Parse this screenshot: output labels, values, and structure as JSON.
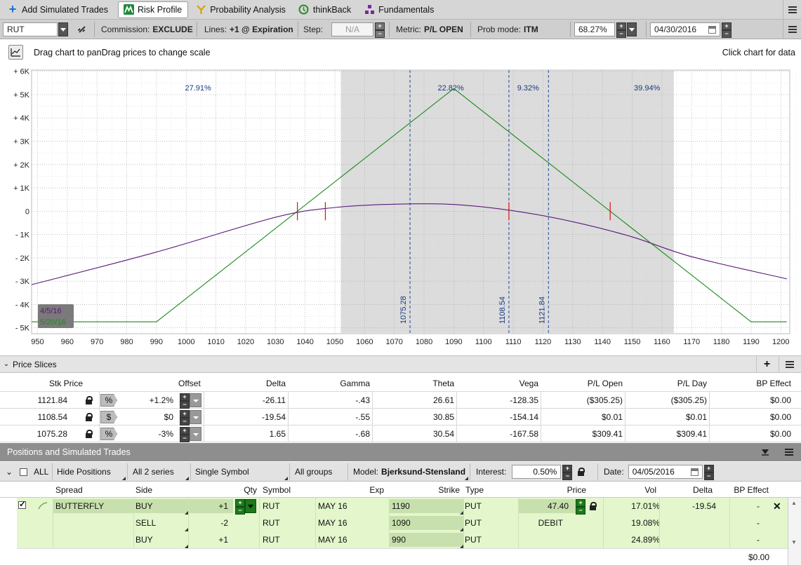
{
  "toolbar": {
    "tabs": [
      {
        "label": "Add Simulated Trades",
        "icon": "plus-icon",
        "color": "#1a6fd0"
      },
      {
        "label": "Risk Profile",
        "icon": "risk-profile-icon",
        "color": "#1d8a3a"
      },
      {
        "label": "Probability Analysis",
        "icon": "probability-icon",
        "color": "#d8a100"
      },
      {
        "label": "thinkBack",
        "icon": "thinkback-icon",
        "color": "#2e8b2e"
      },
      {
        "label": "Fundamentals",
        "icon": "fundamentals-icon",
        "color": "#7a2a9a"
      }
    ],
    "active_tab": "Risk Profile"
  },
  "controls": {
    "symbol": "RUT",
    "commission_label": "Commission:",
    "commission_value": "EXCLUDE",
    "lines_label": "Lines:",
    "lines_value": "+1 @ Expiration",
    "step_label": "Step:",
    "step_value": "N/A",
    "metric_label": "Metric:",
    "metric_value": "P/L OPEN",
    "probmode_label": "Prob mode:",
    "probmode_value": "ITM",
    "prob_pct": "68.27%",
    "date": "04/30/2016"
  },
  "chart_header": {
    "hint": "Drag chart to panDrag prices to change scale",
    "click_hint": "Click chart for data"
  },
  "chart_data": {
    "type": "line",
    "x_ticks": [
      950,
      960,
      970,
      980,
      990,
      1000,
      1010,
      1020,
      1030,
      1040,
      1050,
      1060,
      1070,
      1080,
      1090,
      1100,
      1110,
      1120,
      1130,
      1140,
      1150,
      1160,
      1170,
      1180,
      1190,
      1200
    ],
    "y_ticks": [
      {
        "value": 6000,
        "label": "+ 6K"
      },
      {
        "value": 5000,
        "label": "+ 5K"
      },
      {
        "value": 4000,
        "label": "+ 4K"
      },
      {
        "value": 3000,
        "label": "+ 3K"
      },
      {
        "value": 2000,
        "label": "+ 2K"
      },
      {
        "value": 1000,
        "label": "+ 1K"
      },
      {
        "value": 0,
        "label": "0"
      },
      {
        "value": -1000,
        "label": "- 1K"
      },
      {
        "value": -2000,
        "label": "- 2K"
      },
      {
        "value": -3000,
        "label": "- 3K"
      },
      {
        "value": -4000,
        "label": "- 4K"
      },
      {
        "value": -5000,
        "label": "- 5K"
      }
    ],
    "xlim": [
      948,
      1203
    ],
    "ylim": [
      -5250,
      6050
    ],
    "shaded_region": [
      1052,
      1164
    ],
    "grid": true,
    "series": [
      {
        "name": "5/20/16",
        "color": "#1a8a1a",
        "x": [
          948,
          990,
          1090,
          1190,
          1202
        ],
        "y": [
          -4740,
          -4740,
          5260,
          -4740,
          -4740
        ]
      },
      {
        "name": "4/5/16",
        "color": "#5a1a7a",
        "x": [
          948,
          990,
          1030,
          1050,
          1070,
          1090,
          1110,
          1130,
          1150,
          1170,
          1202
        ],
        "y": [
          -3150,
          -1750,
          -260,
          160,
          300,
          290,
          20,
          -450,
          -1100,
          -1950,
          -2900
        ]
      }
    ],
    "breakevens_expiration": [
      1037.4,
      1142.6
    ],
    "breakevens_today": [
      1046.8,
      1108.54
    ],
    "slice_lines": [
      {
        "x": 1075.28,
        "label": "1075.28"
      },
      {
        "x": 1108.54,
        "label": "1108.54"
      },
      {
        "x": 1121.84,
        "label": "1121.84"
      }
    ],
    "probabilities": [
      {
        "x": 1004,
        "label": "27.91%"
      },
      {
        "x": 1089,
        "label": "22.82%"
      },
      {
        "x": 1115,
        "label": "9.32%"
      },
      {
        "x": 1155,
        "label": "39.94%"
      }
    ],
    "legend": [
      "4/5/16",
      "5/20/16"
    ]
  },
  "price_slices": {
    "title": "Price Slices",
    "headers": [
      "Stk Price",
      "Offset",
      "Delta",
      "Gamma",
      "Theta",
      "Vega",
      "P/L Open",
      "P/L Day",
      "BP Effect"
    ],
    "rows": [
      {
        "price": "1121.84",
        "unit": "%",
        "offset": "+1.2%",
        "delta": "-26.11",
        "gamma": "-.43",
        "theta": "26.61",
        "vega": "-128.35",
        "pl_open": "($305.25)",
        "pl_day": "($305.25)",
        "bp": "$0.00"
      },
      {
        "price": "1108.54",
        "unit": "$",
        "offset": "$0",
        "delta": "-19.54",
        "gamma": "-.55",
        "theta": "30.85",
        "vega": "-154.14",
        "pl_open": "$0.01",
        "pl_day": "$0.01",
        "bp": "$0.00"
      },
      {
        "price": "1075.28",
        "unit": "%",
        "offset": "-3%",
        "delta": "1.65",
        "gamma": "-.68",
        "theta": "30.54",
        "vega": "-167.58",
        "pl_open": "$309.41",
        "pl_day": "$309.41",
        "bp": "$0.00"
      }
    ]
  },
  "positions": {
    "title": "Positions and Simulated Trades",
    "all_label": "ALL",
    "hide_positions": "Hide Positions",
    "series": "All 2 series",
    "symbol_mode": "Single Symbol",
    "groups": "All groups",
    "model_label": "Model:",
    "model_value": "Bjerksund-Stensland",
    "interest_label": "Interest:",
    "interest_value": "0.50%",
    "date_label": "Date:",
    "date_value": "04/05/2016",
    "headers": [
      "Spread",
      "Side",
      "Qty",
      "Symbol",
      "Exp",
      "Strike",
      "Type",
      "Price",
      "Vol",
      "Delta",
      "BP Effect"
    ],
    "rows": [
      {
        "spread": "BUTTERFLY",
        "side": "BUY",
        "qty": "+1",
        "symbol": "RUT",
        "exp": "MAY 16",
        "strike": "1190",
        "type": "PUT",
        "price": "47.40",
        "vol": "17.01%",
        "delta": "-19.54",
        "bp": "-"
      },
      {
        "spread": "",
        "side": "SELL",
        "qty": "-2",
        "symbol": "RUT",
        "exp": "MAY 16",
        "strike": "1090",
        "type": "PUT",
        "price": "DEBIT",
        "vol": "19.08%",
        "delta": "",
        "bp": "-"
      },
      {
        "spread": "",
        "side": "BUY",
        "qty": "+1",
        "symbol": "RUT",
        "exp": "MAY 16",
        "strike": "990",
        "type": "PUT",
        "price": "",
        "vol": "24.89%",
        "delta": "",
        "bp": "-"
      }
    ],
    "total_bp": "$0.00"
  }
}
